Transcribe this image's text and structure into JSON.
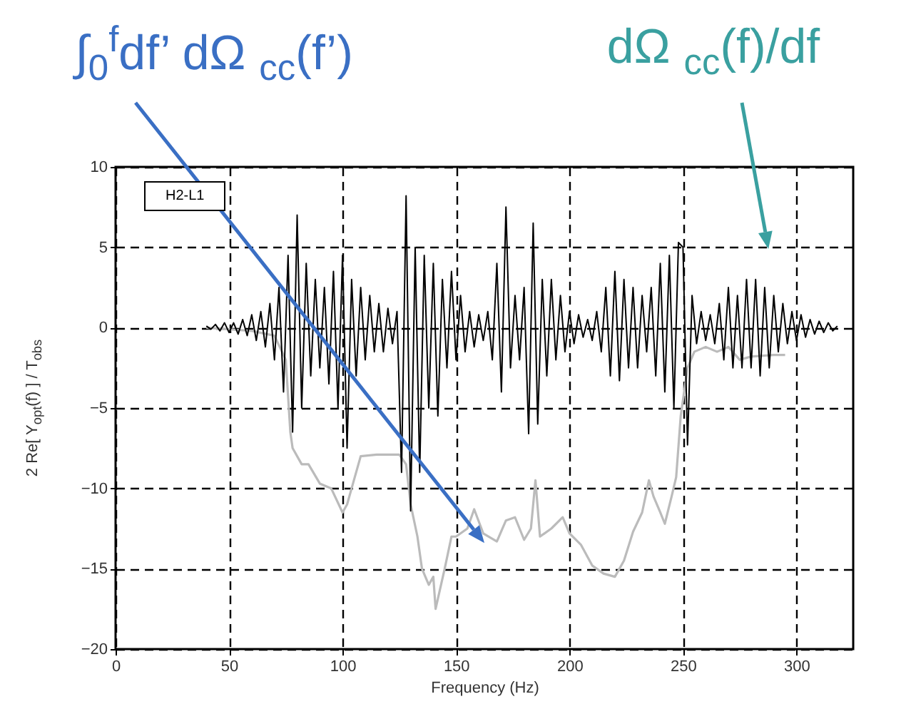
{
  "chart_data": {
    "type": "line",
    "xlabel": "Frequency (Hz)",
    "ylabel": "2 Re[ Y$_{opt}$(f) ] / T$_{obs}$",
    "annotations": [
      "H2-L1",
      "∫$_{0}$$^{f}$df’ dΩ $_{cc}$(f’)",
      "dΩ $_{cc}$(f)/df"
    ],
    "series": [
      {
        "color": "#bbbbbb",
        "x": [
          40,
          60,
          70,
          75,
          77,
          78,
          82,
          85,
          90,
          95,
          100,
          102,
          105,
          108,
          115,
          125,
          128,
          130,
          133,
          135,
          138,
          140,
          141,
          145,
          148,
          150,
          155,
          158,
          162,
          168,
          172,
          176,
          180,
          183,
          185,
          187,
          192,
          197,
          200,
          205,
          210,
          215,
          220,
          224,
          228,
          232,
          235,
          237,
          240,
          242,
          245,
          247,
          249,
          252,
          255,
          260,
          265,
          270,
          275,
          280,
          290,
          295
        ],
        "values": [
          0,
          -0.2,
          -0.5,
          -2,
          -6.5,
          -7.5,
          -8.5,
          -8.5,
          -9.7,
          -10,
          -11.5,
          -11,
          -9.5,
          -8,
          -7.9,
          -7.9,
          -8.5,
          -11,
          -13,
          -15,
          -16,
          -15.5,
          -17.5,
          -15,
          -13,
          -13,
          -12.5,
          -11.3,
          -12.8,
          -13.3,
          -12,
          -11.8,
          -13.2,
          -12.5,
          -9.5,
          -13,
          -12.5,
          -11.8,
          -12.8,
          -13.5,
          -14.8,
          -15.3,
          -15.5,
          -14.5,
          -12.7,
          -11.5,
          -9.5,
          -10.5,
          -11.5,
          -12.2,
          -10.5,
          -9.3,
          -5.5,
          -2.5,
          -1.5,
          -1.2,
          -1.5,
          -1.2,
          -2,
          -1.8,
          -1.7,
          -1.7
        ]
      },
      {
        "color": "#000000",
        "x": [
          40,
          42,
          44,
          46,
          48,
          50,
          52,
          54,
          56,
          58,
          60,
          62,
          64,
          66,
          68,
          70,
          72,
          74,
          76,
          78,
          80,
          82,
          84,
          86,
          88,
          90,
          92,
          94,
          96,
          98,
          100,
          102,
          104,
          106,
          108,
          110,
          112,
          114,
          116,
          118,
          120,
          122,
          124,
          126,
          128,
          130,
          132,
          134,
          136,
          138,
          140,
          142,
          144,
          146,
          148,
          150,
          152,
          154,
          156,
          158,
          160,
          162,
          164,
          166,
          168,
          170,
          172,
          174,
          176,
          178,
          180,
          182,
          184,
          186,
          188,
          190,
          192,
          194,
          196,
          198,
          200,
          202,
          204,
          206,
          208,
          210,
          212,
          214,
          216,
          218,
          220,
          222,
          224,
          226,
          228,
          230,
          232,
          234,
          236,
          238,
          240,
          242,
          244,
          246,
          248,
          250,
          252,
          254,
          256,
          258,
          260,
          262,
          264,
          266,
          268,
          270,
          272,
          274,
          276,
          278,
          280,
          282,
          284,
          286,
          288,
          290,
          292,
          294,
          296,
          298,
          300,
          302,
          304,
          306,
          308,
          310,
          312,
          314,
          316,
          318
        ],
        "values": [
          0.1,
          -0.1,
          0.2,
          -0.2,
          0.3,
          -0.3,
          0.3,
          -0.4,
          0.5,
          -0.5,
          0.8,
          -0.8,
          1.0,
          -1.2,
          1.5,
          -2.0,
          2.5,
          -4.0,
          4.5,
          -6.5,
          7.0,
          -5.0,
          4.0,
          -3.0,
          3.0,
          -2.5,
          2.5,
          -3.5,
          3.5,
          -5.0,
          4.5,
          -7.5,
          3.0,
          -3.0,
          2.5,
          -2.0,
          2.0,
          -1.5,
          1.5,
          -1.5,
          1.2,
          -1.0,
          1.0,
          -9.0,
          8.2,
          -11.4,
          5.0,
          -9.0,
          4.5,
          -5.0,
          4.0,
          -5.5,
          3.0,
          -2.5,
          3.5,
          -2.0,
          2.0,
          -1.5,
          1.0,
          -1.2,
          0.8,
          -0.8,
          1.0,
          -2.0,
          4.0,
          -4.0,
          7.5,
          -2.5,
          2.0,
          -2.0,
          2.5,
          -6.6,
          6.5,
          -6.0,
          3.0,
          -3.0,
          3.0,
          -2.0,
          2.0,
          -1.5,
          1.0,
          -1.0,
          0.8,
          -0.6,
          0.5,
          -0.8,
          1.0,
          -1.5,
          2.5,
          -3.0,
          3.5,
          -3.3,
          3.0,
          -2.5,
          2.5,
          -2.5,
          2.0,
          -1.5,
          2.5,
          -3.0,
          4.0,
          -4.0,
          4.5,
          -5.0,
          5.3,
          5.0,
          -7.3,
          2.0,
          -1.0,
          1.0,
          -0.8,
          0.8,
          -1.0,
          1.5,
          -2.0,
          2.5,
          -2.5,
          2.0,
          -2.5,
          3.0,
          -2.5,
          3.0,
          -3.0,
          2.5,
          -2.5,
          2.0,
          -1.5,
          1.5,
          -1.0,
          1.0,
          -0.8,
          0.8,
          -0.6,
          0.5,
          -0.4,
          0.4,
          -0.3,
          0.3,
          -0.2,
          0.1
        ]
      }
    ],
    "xlim": [
      0,
      325
    ],
    "xticks": [
      0,
      50,
      100,
      150,
      200,
      250,
      300
    ],
    "ylim": [
      -20,
      10
    ],
    "yticks": [
      -20,
      -15,
      -10,
      -5,
      0,
      5,
      10
    ],
    "grid": true,
    "marker": "none",
    "line_style": "solid"
  }
}
